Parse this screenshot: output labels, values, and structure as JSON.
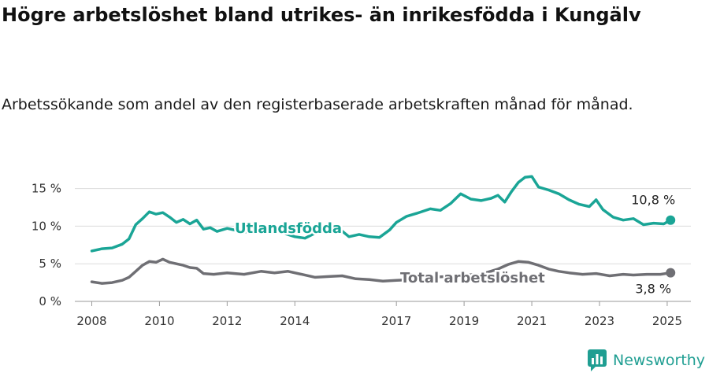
{
  "title": "Högre arbetslöshet bland utrikes- än inrikesfödda i Kungälv",
  "subtitle": "Arbetssökande som andel av den registerbaserade arbetskraften månad för månad.",
  "brand": {
    "name": "Newsworthy"
  },
  "colors": {
    "foreign": "#1aa596",
    "total": "#6f6f74",
    "grid": "#dcdcdc"
  },
  "chart_data": {
    "type": "line",
    "xlim": [
      2007.5,
      2025.7
    ],
    "ylim": [
      0,
      16
    ],
    "y_ticks": [
      0,
      5,
      10,
      15
    ],
    "y_tick_labels": [
      "0 %",
      "5 %",
      "10 %",
      "15 %"
    ],
    "x_ticks": [
      2008,
      2010,
      2012,
      2014,
      2017,
      2019,
      2021,
      2023,
      2025
    ],
    "x_tick_labels": [
      "2008",
      "2010",
      "2012",
      "2014",
      "2017",
      "2019",
      "2021",
      "2023",
      "2025"
    ],
    "series": [
      {
        "name": "Utlandsfödda",
        "end_label": "10,8 %",
        "points": [
          [
            2008.0,
            6.7
          ],
          [
            2008.3,
            7.0
          ],
          [
            2008.6,
            7.1
          ],
          [
            2008.9,
            7.6
          ],
          [
            2009.1,
            8.3
          ],
          [
            2009.3,
            10.2
          ],
          [
            2009.5,
            11.0
          ],
          [
            2009.7,
            11.9
          ],
          [
            2009.9,
            11.6
          ],
          [
            2010.1,
            11.8
          ],
          [
            2010.3,
            11.2
          ],
          [
            2010.5,
            10.5
          ],
          [
            2010.7,
            10.9
          ],
          [
            2010.9,
            10.3
          ],
          [
            2011.1,
            10.8
          ],
          [
            2011.3,
            9.6
          ],
          [
            2011.5,
            9.8
          ],
          [
            2011.7,
            9.3
          ],
          [
            2012.0,
            9.7
          ],
          [
            2012.5,
            9.2
          ],
          [
            2013.0,
            9.5
          ],
          [
            2013.5,
            9.3
          ],
          [
            2014.0,
            8.6
          ],
          [
            2014.3,
            8.4
          ],
          [
            2014.7,
            9.3
          ],
          [
            2015.0,
            9.2
          ],
          [
            2015.3,
            9.7
          ],
          [
            2015.6,
            8.6
          ],
          [
            2015.9,
            8.9
          ],
          [
            2016.2,
            8.6
          ],
          [
            2016.5,
            8.5
          ],
          [
            2016.8,
            9.5
          ],
          [
            2017.0,
            10.5
          ],
          [
            2017.3,
            11.3
          ],
          [
            2017.6,
            11.7
          ],
          [
            2018.0,
            12.3
          ],
          [
            2018.3,
            12.1
          ],
          [
            2018.6,
            13.0
          ],
          [
            2018.9,
            14.3
          ],
          [
            2019.2,
            13.6
          ],
          [
            2019.5,
            13.4
          ],
          [
            2019.8,
            13.7
          ],
          [
            2020.0,
            14.1
          ],
          [
            2020.2,
            13.2
          ],
          [
            2020.4,
            14.6
          ],
          [
            2020.6,
            15.8
          ],
          [
            2020.8,
            16.5
          ],
          [
            2021.0,
            16.6
          ],
          [
            2021.2,
            15.2
          ],
          [
            2021.5,
            14.8
          ],
          [
            2021.8,
            14.3
          ],
          [
            2022.1,
            13.5
          ],
          [
            2022.4,
            12.9
          ],
          [
            2022.7,
            12.6
          ],
          [
            2022.9,
            13.5
          ],
          [
            2023.1,
            12.2
          ],
          [
            2023.4,
            11.2
          ],
          [
            2023.7,
            10.8
          ],
          [
            2024.0,
            11.0
          ],
          [
            2024.3,
            10.2
          ],
          [
            2024.6,
            10.4
          ],
          [
            2024.9,
            10.3
          ],
          [
            2025.1,
            10.8
          ]
        ]
      },
      {
        "name": "Total arbetslöshet",
        "end_label": "3,8 %",
        "points": [
          [
            2008.0,
            2.6
          ],
          [
            2008.3,
            2.4
          ],
          [
            2008.6,
            2.5
          ],
          [
            2008.9,
            2.8
          ],
          [
            2009.1,
            3.2
          ],
          [
            2009.3,
            4.0
          ],
          [
            2009.5,
            4.8
          ],
          [
            2009.7,
            5.3
          ],
          [
            2009.9,
            5.2
          ],
          [
            2010.1,
            5.6
          ],
          [
            2010.3,
            5.2
          ],
          [
            2010.5,
            5.0
          ],
          [
            2010.7,
            4.8
          ],
          [
            2010.9,
            4.5
          ],
          [
            2011.1,
            4.4
          ],
          [
            2011.3,
            3.7
          ],
          [
            2011.6,
            3.6
          ],
          [
            2012.0,
            3.8
          ],
          [
            2012.5,
            3.6
          ],
          [
            2013.0,
            4.0
          ],
          [
            2013.4,
            3.8
          ],
          [
            2013.8,
            4.0
          ],
          [
            2014.2,
            3.6
          ],
          [
            2014.6,
            3.2
          ],
          [
            2015.0,
            3.3
          ],
          [
            2015.4,
            3.4
          ],
          [
            2015.8,
            3.0
          ],
          [
            2016.2,
            2.9
          ],
          [
            2016.6,
            2.7
          ],
          [
            2017.0,
            2.8
          ],
          [
            2017.5,
            2.9
          ],
          [
            2018.0,
            3.2
          ],
          [
            2018.5,
            3.3
          ],
          [
            2019.0,
            3.5
          ],
          [
            2019.5,
            3.6
          ],
          [
            2020.0,
            4.3
          ],
          [
            2020.3,
            4.9
          ],
          [
            2020.6,
            5.3
          ],
          [
            2020.9,
            5.2
          ],
          [
            2021.2,
            4.8
          ],
          [
            2021.5,
            4.3
          ],
          [
            2021.8,
            4.0
          ],
          [
            2022.1,
            3.8
          ],
          [
            2022.5,
            3.6
          ],
          [
            2022.9,
            3.7
          ],
          [
            2023.3,
            3.4
          ],
          [
            2023.7,
            3.6
          ],
          [
            2024.0,
            3.5
          ],
          [
            2024.4,
            3.6
          ],
          [
            2024.8,
            3.6
          ],
          [
            2025.1,
            3.8
          ]
        ]
      }
    ]
  }
}
